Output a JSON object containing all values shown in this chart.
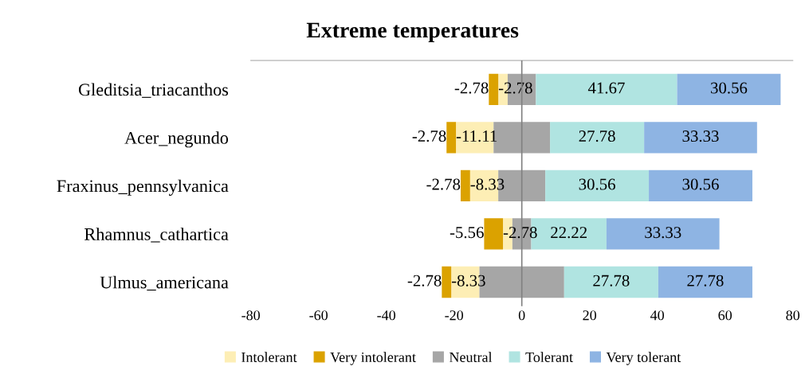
{
  "chart_data": {
    "type": "bar",
    "orientation": "horizontal",
    "title": "Extreme temperatures",
    "categories": [
      "Gleditsia_triacanthos",
      "Acer_negundo",
      "Fraxinus_pennsylvanica",
      "Rhamnus_cathartica",
      "Ulmus_americana"
    ],
    "series": [
      {
        "name": "Intolerant",
        "color": "#fdeeb5",
        "values": [
          -2.78,
          -11.11,
          -8.33,
          -2.78,
          -8.33
        ],
        "base": [
          -4.17,
          -8.33,
          -6.94,
          -2.78,
          -12.5
        ],
        "value_labels": [
          "-2.78",
          "-11.11",
          "-8.33",
          "-2.78",
          "-8.33"
        ]
      },
      {
        "name": "Very intolerant",
        "color": "#dba200",
        "values": [
          -2.78,
          -2.78,
          -2.78,
          -5.56,
          -2.78
        ],
        "base": [
          -6.95,
          -19.44,
          -15.27,
          -5.56,
          -20.83
        ],
        "value_labels": [
          "-2.78",
          "-2.78",
          "-2.78",
          "-5.56",
          "-2.78"
        ]
      },
      {
        "name": "Neutral",
        "color": "#a6a6a6",
        "values": [
          8.33,
          16.67,
          13.89,
          5.56,
          25
        ],
        "base": [
          -4.17,
          -8.33,
          -6.94,
          -2.78,
          -12.5
        ]
      },
      {
        "name": "Tolerant",
        "color": "#b0e4e1",
        "values": [
          41.67,
          27.78,
          30.56,
          22.22,
          27.78
        ],
        "base": [
          4.17,
          8.33,
          6.94,
          2.78,
          12.5
        ],
        "value_labels": [
          "41.67",
          "27.78",
          "30.56",
          "22.22",
          "27.78"
        ]
      },
      {
        "name": "Very tolerant",
        "color": "#8eb4e3",
        "values": [
          30.56,
          33.33,
          30.56,
          33.33,
          27.78
        ],
        "base": [
          45.84,
          36.11,
          37.5,
          25,
          40.28
        ],
        "value_labels": [
          "30.56",
          "33.33",
          "30.56",
          "33.33",
          "27.78"
        ]
      }
    ],
    "xlim": [
      -80,
      80
    ],
    "xticks": [
      -80,
      -60,
      -40,
      -20,
      0,
      20,
      40,
      60,
      80
    ],
    "ref_lines": [
      {
        "axis": "x",
        "value": 0,
        "color": "#808080"
      }
    ],
    "grid": false,
    "legend": "bottom"
  }
}
